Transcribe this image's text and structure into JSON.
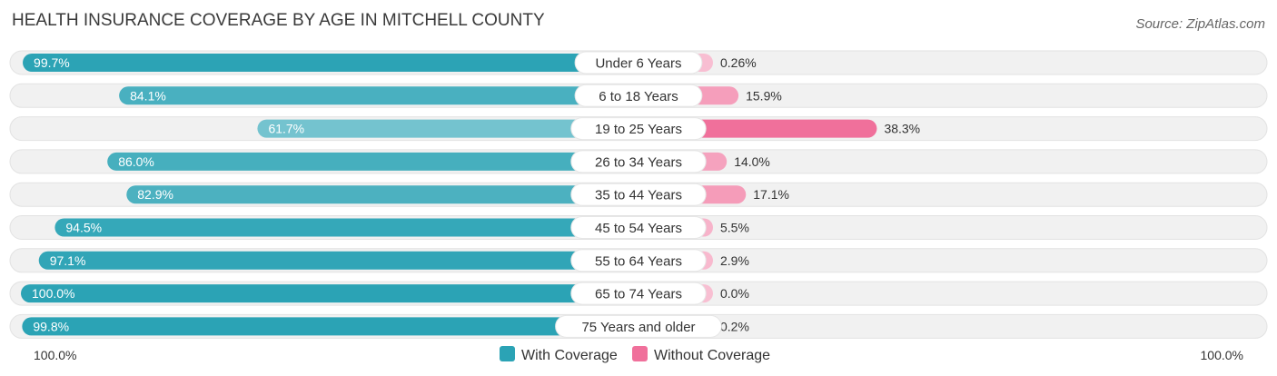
{
  "chart_data": {
    "type": "bar",
    "orientation": "diverging-horizontal",
    "title": "HEALTH INSURANCE COVERAGE BY AGE IN MITCHELL COUNTY",
    "source": "Source: ZipAtlas.com",
    "categories": [
      "Under 6 Years",
      "6 to 18 Years",
      "19 to 25 Years",
      "26 to 34 Years",
      "35 to 44 Years",
      "45 to 54 Years",
      "55 to 64 Years",
      "65 to 74 Years",
      "75 Years and older"
    ],
    "series": [
      {
        "name": "With Coverage",
        "color": "#2ba3b5",
        "values": [
          99.7,
          84.1,
          61.7,
          86.0,
          82.9,
          94.5,
          97.1,
          100.0,
          99.8
        ],
        "labels": [
          "99.7%",
          "84.1%",
          "61.7%",
          "86.0%",
          "82.9%",
          "94.5%",
          "97.1%",
          "100.0%",
          "99.8%"
        ]
      },
      {
        "name": "Without Coverage",
        "color": "#f0709b",
        "values": [
          0.26,
          15.9,
          38.3,
          14.0,
          17.1,
          5.5,
          2.9,
          0.0,
          0.2
        ],
        "labels": [
          "0.26%",
          "15.9%",
          "38.3%",
          "14.0%",
          "17.1%",
          "5.5%",
          "2.9%",
          "0.0%",
          "0.2%"
        ]
      }
    ],
    "axis_left_label": "100.0%",
    "axis_right_label": "100.0%",
    "xlim": [
      0,
      100
    ],
    "legend_position": "bottom-center"
  }
}
